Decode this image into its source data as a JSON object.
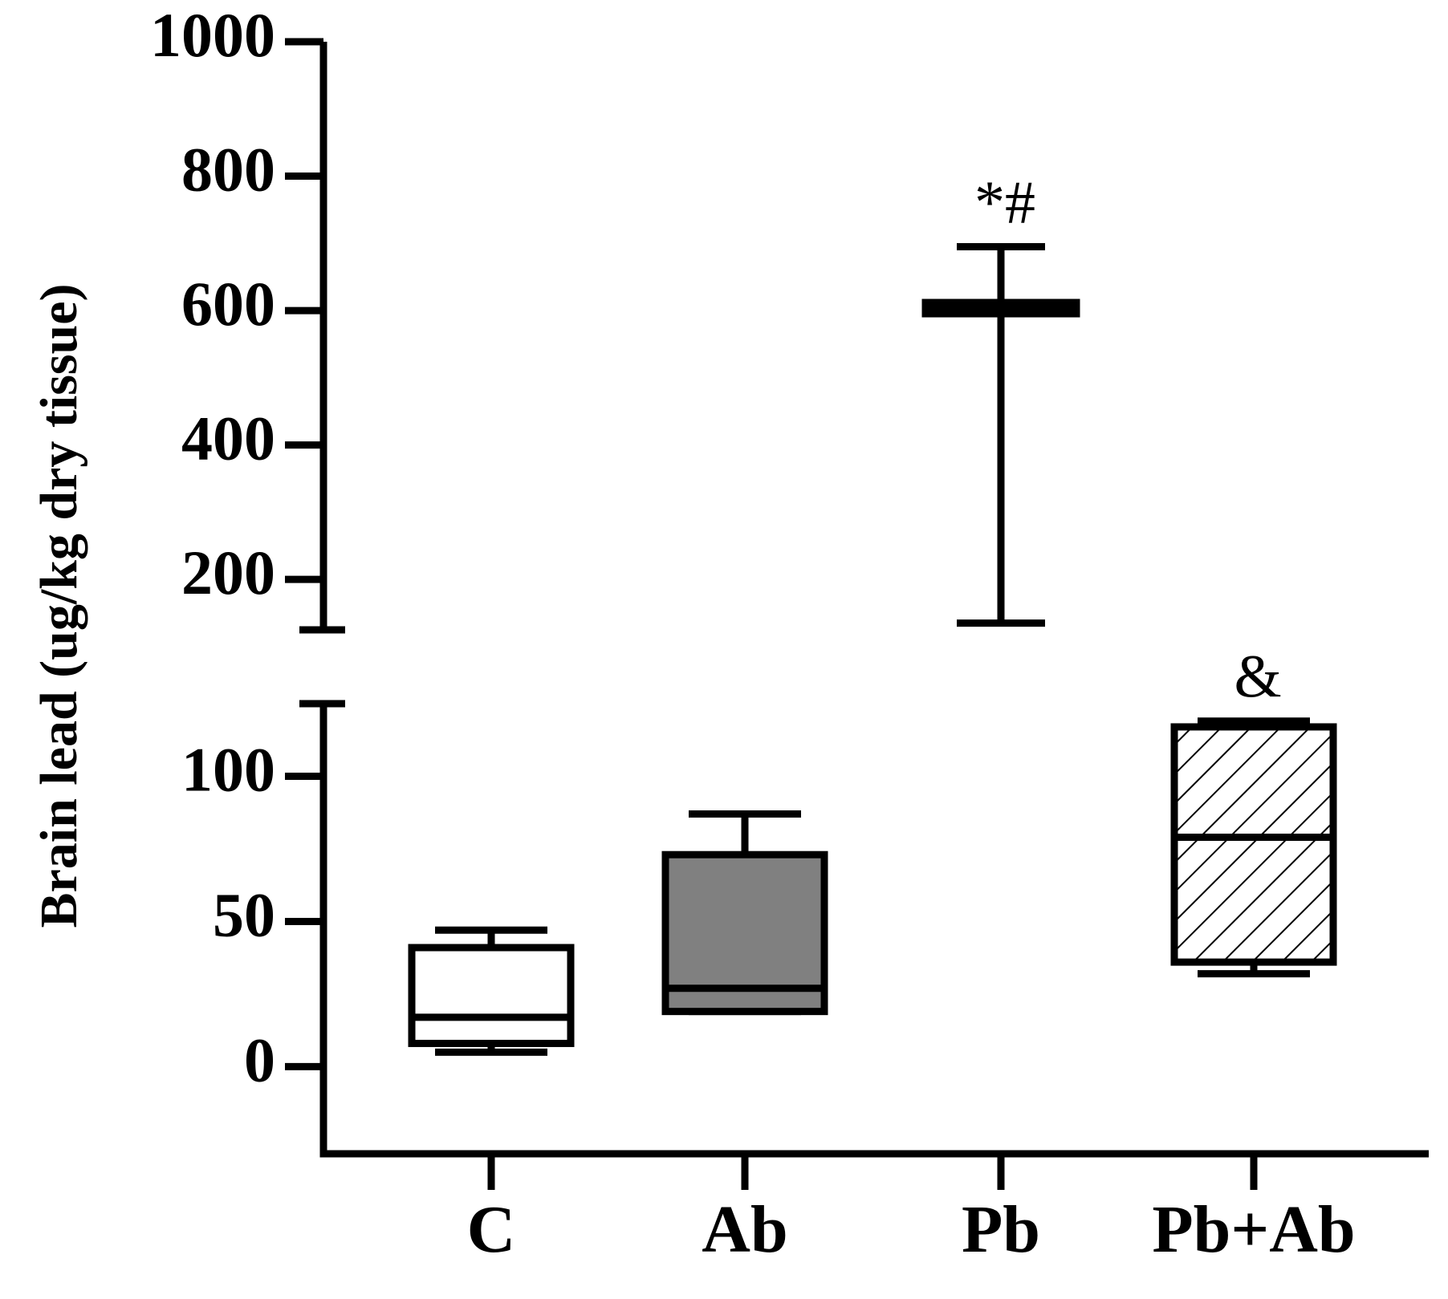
{
  "chart_data": {
    "type": "box",
    "ylabel": "Brain lead  (ug/kg dry tissue)",
    "y_axis_break": true,
    "lower_segment": {
      "ylim": [
        -30,
        125
      ],
      "ticks": [
        0,
        50,
        100
      ]
    },
    "upper_segment": {
      "ylim": [
        125,
        1000
      ],
      "ticks": [
        200,
        400,
        600,
        800,
        1000
      ]
    },
    "categories": [
      "C",
      "Ab",
      "Pb",
      "Pb+Ab"
    ],
    "boxes": [
      {
        "name": "C",
        "min": 5,
        "q1": 8,
        "median": 17,
        "q3": 41,
        "max": 47,
        "fill": "#ffffff",
        "pattern": "none",
        "annotation": ""
      },
      {
        "name": "Ab",
        "min": 19,
        "q1": 19,
        "median": 27,
        "q3": 73,
        "max": 87,
        "fill": "#808080",
        "pattern": "none",
        "annotation": ""
      },
      {
        "name": "Pb",
        "min": 135,
        "q1": 596,
        "median": 603,
        "q3": 612,
        "max": 695,
        "fill": "#000000",
        "pattern": "none",
        "annotation": "*#"
      },
      {
        "name": "Pb+Ab",
        "min": 32,
        "q1": 36,
        "median": 79,
        "q3": 117,
        "max": 119,
        "fill": "#ffffff",
        "pattern": "hatch",
        "annotation": "&"
      }
    ]
  }
}
